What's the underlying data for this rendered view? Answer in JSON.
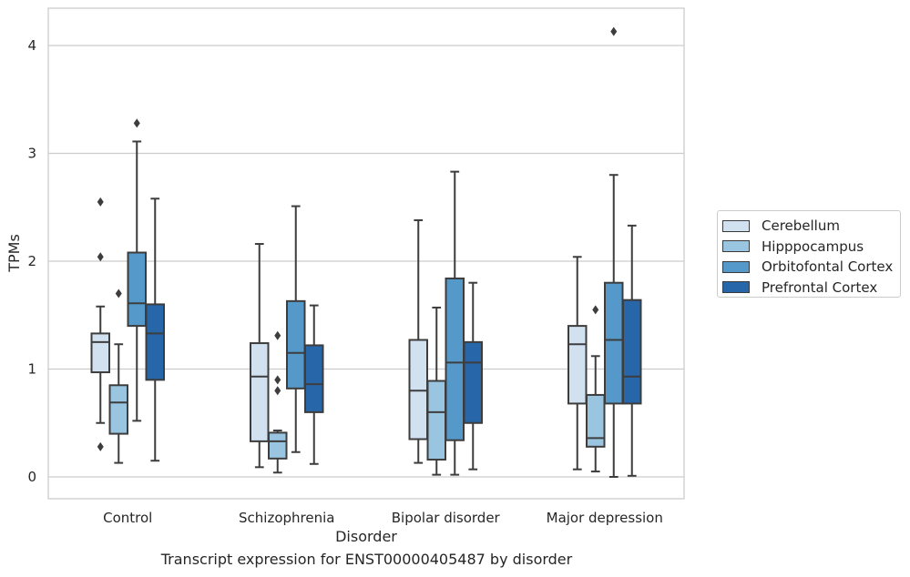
{
  "chart_data": {
    "type": "box",
    "xlabel": "Disorder",
    "ylabel": "TPMs",
    "caption": "Transcript expression for ENST00000405487 by disorder",
    "categories": [
      "Control",
      "Schizophrenia",
      "Bipolar disorder",
      "Major depression"
    ],
    "yticks": [
      0,
      1,
      2,
      3,
      4
    ],
    "ylim": [
      -0.2,
      4.35
    ],
    "grid": "horizontal",
    "legend_position": "right",
    "series": [
      {
        "name": "Cerebellum",
        "color": "#d1e1f0",
        "boxes": [
          {
            "whislo": 0.5,
            "q1": 0.97,
            "med": 1.25,
            "q3": 1.33,
            "whishi": 1.58,
            "fliers": [
              0.28,
              2.04,
              2.55
            ]
          },
          {
            "whislo": 0.09,
            "q1": 0.33,
            "med": 0.93,
            "q3": 1.24,
            "whishi": 2.16,
            "fliers": []
          },
          {
            "whislo": 0.13,
            "q1": 0.35,
            "med": 0.8,
            "q3": 1.27,
            "whishi": 2.38,
            "fliers": []
          },
          {
            "whislo": 0.07,
            "q1": 0.68,
            "med": 1.23,
            "q3": 1.4,
            "whishi": 2.04,
            "fliers": []
          }
        ]
      },
      {
        "name": "Hipppocampus",
        "color": "#9ac5e0",
        "boxes": [
          {
            "whislo": 0.13,
            "q1": 0.4,
            "med": 0.69,
            "q3": 0.85,
            "whishi": 1.23,
            "fliers": [
              1.7
            ]
          },
          {
            "whislo": 0.04,
            "q1": 0.17,
            "med": 0.33,
            "q3": 0.41,
            "whishi": 0.43,
            "fliers": [
              0.8,
              0.9,
              1.31
            ]
          },
          {
            "whislo": 0.02,
            "q1": 0.16,
            "med": 0.6,
            "q3": 0.89,
            "whishi": 1.57,
            "fliers": []
          },
          {
            "whislo": 0.05,
            "q1": 0.28,
            "med": 0.36,
            "q3": 0.76,
            "whishi": 1.12,
            "fliers": [
              1.55
            ]
          }
        ]
      },
      {
        "name": "Orbitofontal Cortex",
        "color": "#5499c9",
        "boxes": [
          {
            "whislo": 0.52,
            "q1": 1.4,
            "med": 1.61,
            "q3": 2.08,
            "whishi": 3.11,
            "fliers": [
              3.28
            ]
          },
          {
            "whislo": 0.23,
            "q1": 0.82,
            "med": 1.15,
            "q3": 1.63,
            "whishi": 2.51,
            "fliers": []
          },
          {
            "whislo": 0.02,
            "q1": 0.34,
            "med": 1.06,
            "q3": 1.84,
            "whishi": 2.83,
            "fliers": []
          },
          {
            "whislo": 0.0,
            "q1": 0.68,
            "med": 1.27,
            "q3": 1.8,
            "whishi": 2.8,
            "fliers": [
              4.13
            ]
          }
        ]
      },
      {
        "name": "Prefrontal Cortex",
        "color": "#2766a9",
        "boxes": [
          {
            "whislo": 0.15,
            "q1": 0.9,
            "med": 1.33,
            "q3": 1.6,
            "whishi": 2.58,
            "fliers": []
          },
          {
            "whislo": 0.12,
            "q1": 0.6,
            "med": 0.86,
            "q3": 1.22,
            "whishi": 1.59,
            "fliers": []
          },
          {
            "whislo": 0.07,
            "q1": 0.5,
            "med": 1.06,
            "q3": 1.25,
            "whishi": 1.8,
            "fliers": []
          },
          {
            "whislo": 0.01,
            "q1": 0.68,
            "med": 0.93,
            "q3": 1.64,
            "whishi": 2.33,
            "fliers": []
          }
        ]
      }
    ]
  }
}
